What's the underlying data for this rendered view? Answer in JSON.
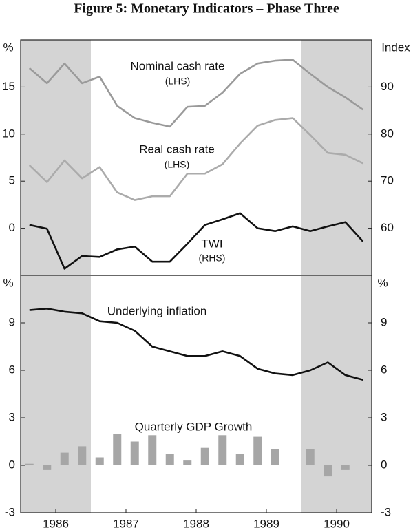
{
  "title": "Figure 5: Monetary Indicators – Phase Three",
  "chart_data": [
    {
      "type": "line",
      "y_label": "%",
      "y2_label": "Index",
      "xlim": [
        1986,
        1991
      ],
      "x": [
        1986.125,
        1986.375,
        1986.625,
        1986.875,
        1987.125,
        1987.375,
        1987.625,
        1987.875,
        1988.125,
        1988.375,
        1988.625,
        1988.875,
        1989.125,
        1989.375,
        1989.625,
        1989.875,
        1990.125,
        1990.375,
        1990.625,
        1990.875
      ],
      "shaded": [
        [
          1986,
          1987
        ],
        [
          1990,
          1991
        ]
      ],
      "ylim": [
        -5,
        20
      ],
      "yticks": [
        0,
        5,
        10,
        15
      ],
      "y2lim": [
        50,
        100
      ],
      "y2ticks": [
        60,
        70,
        80,
        90
      ],
      "series": [
        {
          "name": "Nominal cash rate",
          "side_label": "(LHS)",
          "color": "#9a9a9a",
          "values": [
            17.0,
            15.4,
            17.5,
            15.4,
            16.1,
            13.0,
            11.7,
            11.2,
            10.8,
            12.9,
            13.0,
            14.4,
            16.4,
            17.5,
            17.8,
            17.9,
            16.4,
            15.0,
            13.9,
            12.6
          ]
        },
        {
          "name": "Real cash rate",
          "side_label": "(LHS)",
          "color": "#ababab",
          "values": [
            6.7,
            4.9,
            7.2,
            5.3,
            6.5,
            3.8,
            3.0,
            3.4,
            3.4,
            5.8,
            5.8,
            6.8,
            9.0,
            10.9,
            11.5,
            11.7,
            9.9,
            8.0,
            7.8,
            6.9
          ]
        },
        {
          "name": "TWI",
          "side_label": "(RHS)",
          "color": "#111111",
          "axis": "y2",
          "values": [
            60.7,
            59.9,
            51.4,
            54.1,
            53.9,
            55.5,
            56.1,
            52.9,
            52.9,
            56.7,
            60.7,
            61.9,
            63.2,
            60.0,
            59.4,
            60.4,
            59.4,
            60.4,
            61.3,
            57.2
          ]
        }
      ]
    },
    {
      "type": "line",
      "y_label": "%",
      "y2_label": "%",
      "xlim": [
        1986,
        1991
      ],
      "x": [
        1986.125,
        1986.375,
        1986.625,
        1986.875,
        1987.125,
        1987.375,
        1987.625,
        1987.875,
        1988.125,
        1988.375,
        1988.625,
        1988.875,
        1989.125,
        1989.375,
        1989.625,
        1989.875,
        1990.125,
        1990.375,
        1990.625,
        1990.875
      ],
      "shaded": [
        [
          1986,
          1987
        ],
        [
          1990,
          1991
        ]
      ],
      "ylim": [
        -3,
        12
      ],
      "yticks": [
        -3,
        0,
        3,
        6,
        9
      ],
      "y2lim": [
        -3,
        12
      ],
      "y2ticks": [
        -3,
        0,
        3,
        6,
        9
      ],
      "xticks": [
        {
          "value": 1986.5,
          "label": "1986"
        },
        {
          "value": 1987.5,
          "label": "1987"
        },
        {
          "value": 1988.5,
          "label": "1988"
        },
        {
          "value": 1989.5,
          "label": "1989"
        },
        {
          "value": 1990.5,
          "label": "1990"
        }
      ],
      "series": [
        {
          "name": "Underlying inflation",
          "color": "#111111",
          "values": [
            9.8,
            9.9,
            9.7,
            9.6,
            9.1,
            9.0,
            8.5,
            7.5,
            7.2,
            6.9,
            6.9,
            7.2,
            6.9,
            6.1,
            5.8,
            5.7,
            6.0,
            6.5,
            5.7,
            5.4
          ]
        },
        {
          "name": "Quarterly GDP Growth",
          "type": "bar",
          "color": "#a6a6a6",
          "values": [
            0.1,
            -0.3,
            0.8,
            1.2,
            0.5,
            2.0,
            1.5,
            1.9,
            0.7,
            0.3,
            1.1,
            1.9,
            0.7,
            1.8,
            1.0,
            null,
            1.0,
            -0.7,
            -0.3,
            null
          ]
        }
      ]
    }
  ]
}
